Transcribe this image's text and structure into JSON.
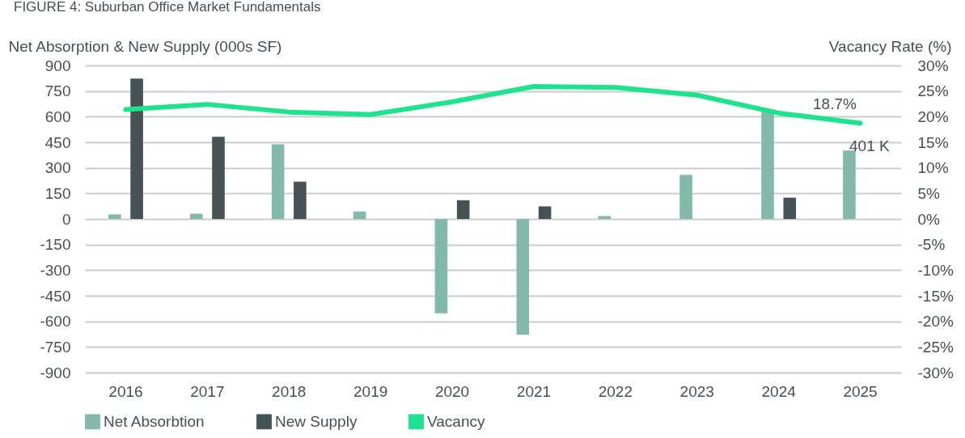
{
  "chart_data": {
    "type": "bar",
    "title": "FIGURE 4: Suburban Office Market Fundamentals",
    "ylabel": "Net Absorption & New Supply (000s SF)",
    "y2label": "Vacancy Rate (%)",
    "categories": [
      "2016",
      "2017",
      "2018",
      "2019",
      "2020",
      "2021",
      "2022",
      "2023",
      "2024",
      "2025"
    ],
    "series": [
      {
        "name": "Net Absorbtion",
        "color": "#82b9aa",
        "values": [
          27,
          31,
          438,
          44,
          -553,
          -678,
          17,
          259,
          635,
          401
        ]
      },
      {
        "name": "New Supply",
        "color": "#455357",
        "values": [
          823,
          482,
          219,
          null,
          110,
          74,
          null,
          null,
          125,
          null
        ]
      },
      {
        "name": "Vacancy",
        "type": "line",
        "axis": "y2",
        "color": "#1de38e",
        "values": [
          21.4,
          22.4,
          20.9,
          20.4,
          22.9,
          25.9,
          25.7,
          24.2,
          20.7,
          18.7
        ]
      }
    ],
    "ylim": [
      -900,
      900
    ],
    "yticks": [
      -900,
      -750,
      -600,
      -450,
      -300,
      -150,
      0,
      150,
      300,
      450,
      600,
      750,
      900
    ],
    "y2lim": [
      -30,
      30
    ],
    "y2ticks": [
      {
        "value": -30,
        "label": "-30%"
      },
      {
        "value": -25,
        "label": "-25%"
      },
      {
        "value": -20,
        "label": "-20%"
      },
      {
        "value": -15,
        "label": "-15%"
      },
      {
        "value": -10,
        "label": "-10%"
      },
      {
        "value": -5,
        "label": "-5%"
      },
      {
        "value": 0,
        "label": "0%"
      },
      {
        "value": 5,
        "label": "5%"
      },
      {
        "value": 10,
        "label": "10%"
      },
      {
        "value": 15,
        "label": "15%"
      },
      {
        "value": 20,
        "label": "20%"
      },
      {
        "value": 25,
        "label": "25%"
      },
      {
        "value": 30,
        "label": "30%"
      }
    ],
    "annotations": [
      "18.7%",
      "401 K"
    ],
    "grid": "y",
    "legend": "bottom",
    "marker": "none",
    "line_style": "solid"
  }
}
